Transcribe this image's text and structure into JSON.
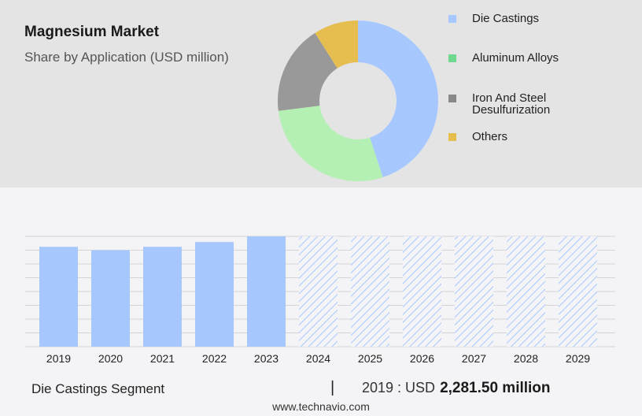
{
  "title": "Magnesium Market",
  "subtitle": "Share by Application (USD million)",
  "colors": {
    "die_castings": "#a6c8ff",
    "aluminum_alloys": "#b4f0b4",
    "iron_steel": "#999999",
    "others": "#e6be50",
    "hatch": "#a6c8ff"
  },
  "chart_data": [
    {
      "type": "pie",
      "variant": "donut",
      "legend_position": "right",
      "slices": [
        {
          "label": "Die Castings",
          "value": 45,
          "color": "#a6c8ff",
          "legend_color": "#a6c8ff"
        },
        {
          "label": "Aluminum Alloys",
          "value": 28,
          "color": "#b4f0b4",
          "legend_color": "#70d890"
        },
        {
          "label": "Iron And Steel Desulfurization",
          "value": 18,
          "color": "#999999",
          "legend_color": "#888888"
        },
        {
          "label": "Others",
          "value": 9,
          "color": "#e6be50",
          "legend_color": "#e6be50"
        }
      ]
    },
    {
      "type": "bar",
      "categories": [
        "2019",
        "2020",
        "2021",
        "2022",
        "2023",
        "2024",
        "2025",
        "2026",
        "2027",
        "2028",
        "2029"
      ],
      "values": [
        2281.5,
        2202,
        2283,
        2391,
        2520,
        2520,
        2520,
        2520,
        2520,
        2520,
        2520
      ],
      "forecast_from": "2024",
      "forecast_style": "hatched",
      "ylim": [
        0,
        2520
      ],
      "grid": true,
      "xlabel": "",
      "ylabel": ""
    }
  ],
  "footer": {
    "segment": "Die Castings Segment",
    "divider": "|",
    "year_label": "2019 : USD",
    "amount": "2,281.50 million",
    "source": "www.technavio.com"
  }
}
